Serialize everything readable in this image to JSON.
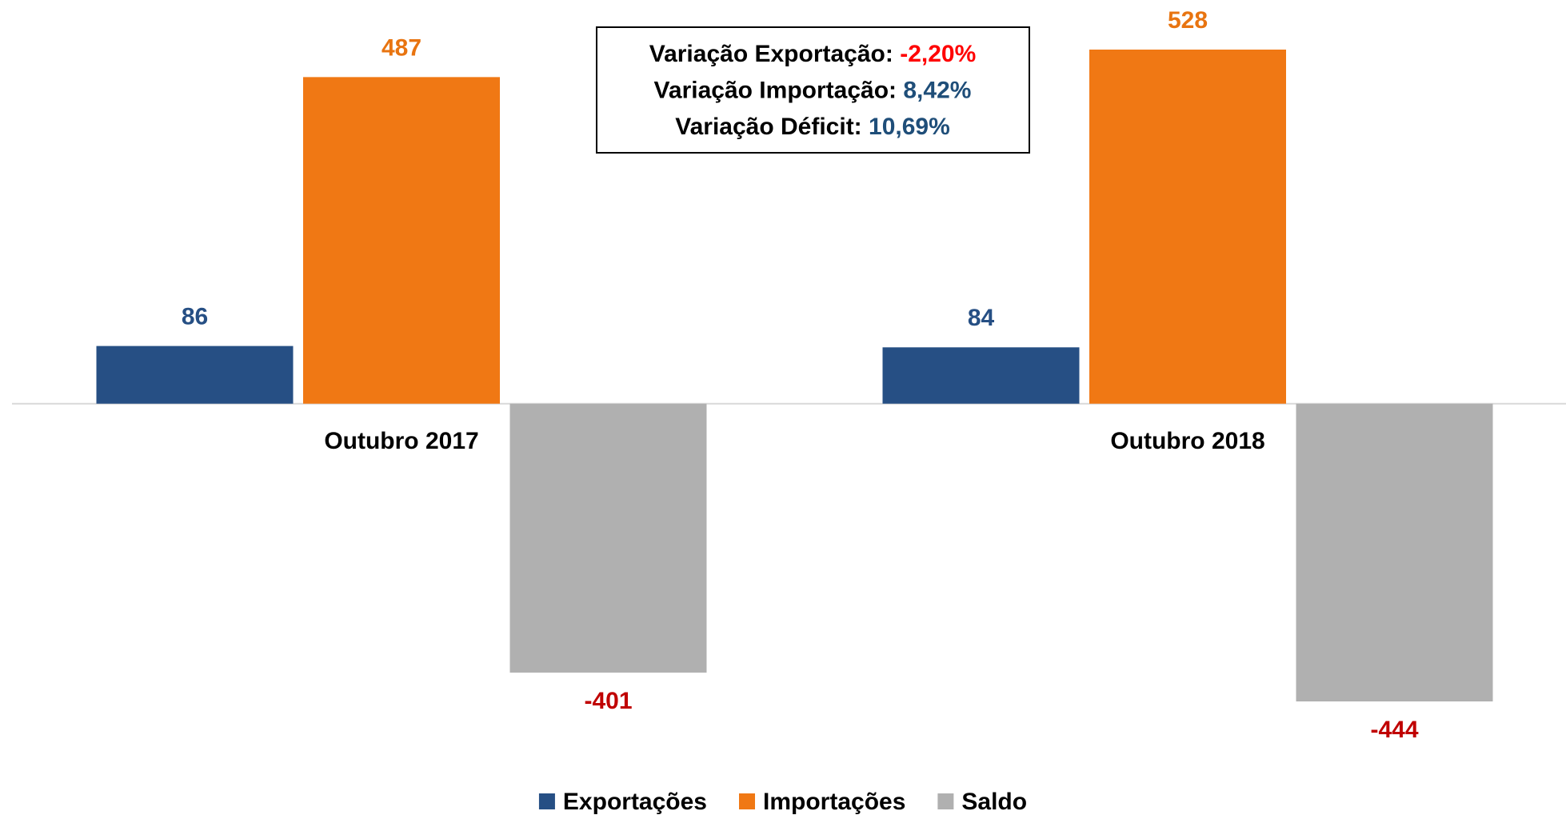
{
  "chart_data": {
    "type": "bar",
    "categories": [
      "Outubro 2017",
      "Outubro 2018"
    ],
    "series": [
      {
        "name": "Exportações",
        "color": "#264f84",
        "label_color": "#264f84",
        "values": [
          86,
          84
        ]
      },
      {
        "name": "Importações",
        "color": "#f07814",
        "label_color": "#e87410",
        "values": [
          487,
          528
        ]
      },
      {
        "name": "Saldo",
        "color": "#b0b0b0",
        "label_color": "#c00000",
        "values": [
          -401,
          -444
        ]
      }
    ],
    "annotations": [
      {
        "label": "Variação Exportação:",
        "value": "-2,20%",
        "color": "#ff0000"
      },
      {
        "label": "Variação Importação:",
        "value": "8,42%",
        "color": "#1f4e79"
      },
      {
        "label": "Variação Déficit:",
        "value": "10,69%",
        "color": "#1f4e79"
      }
    ],
    "legend": "bottom"
  }
}
